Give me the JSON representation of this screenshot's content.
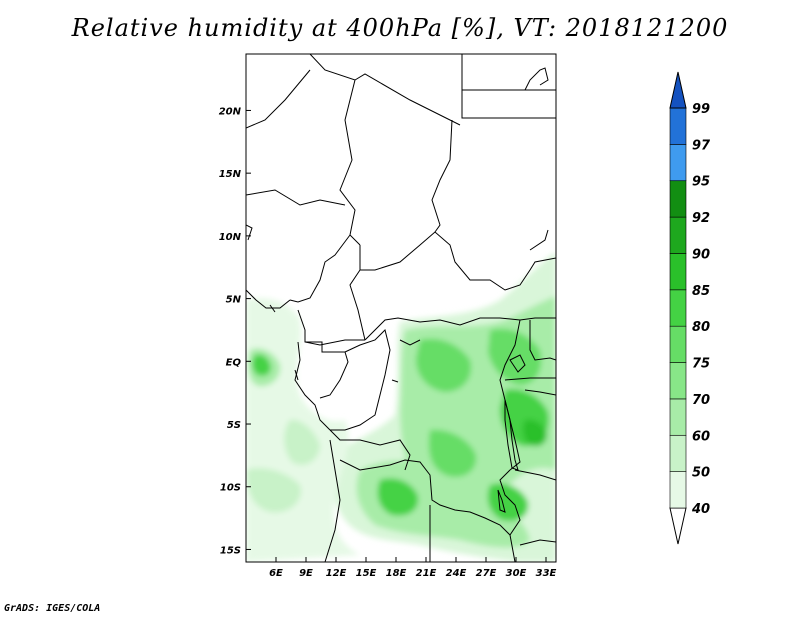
{
  "title": "Relative humidity at 400hPa [%], VT: 2018121200",
  "footer": "GrADS: IGES/COLA",
  "map": {
    "lon_range": [
      3,
      34
    ],
    "lat_range": [
      -16,
      24.5
    ],
    "lon_ticks": [
      "6E",
      "9E",
      "12E",
      "15E",
      "18E",
      "21E",
      "24E",
      "27E",
      "30E",
      "33E"
    ],
    "lon_values": [
      6,
      9,
      12,
      15,
      18,
      21,
      24,
      27,
      30,
      33
    ],
    "lat_ticks": [
      "20N",
      "15N",
      "10N",
      "5N",
      "EQ",
      "5S",
      "10S",
      "15S"
    ],
    "lat_values": [
      20,
      15,
      10,
      5,
      0,
      -5,
      -10,
      -15
    ]
  },
  "colorbar": {
    "labels": [
      "40",
      "50",
      "60",
      "70",
      "75",
      "80",
      "85",
      "90",
      "92",
      "95",
      "97",
      "99"
    ],
    "colors": [
      "#ffffff",
      "#e6f9e6",
      "#c8f2c8",
      "#a8eca8",
      "#88e688",
      "#66dd66",
      "#44d244",
      "#2ac02a",
      "#1ea81e",
      "#128e12",
      "#3f9bef",
      "#2272d8",
      "#1452c0"
    ]
  }
}
